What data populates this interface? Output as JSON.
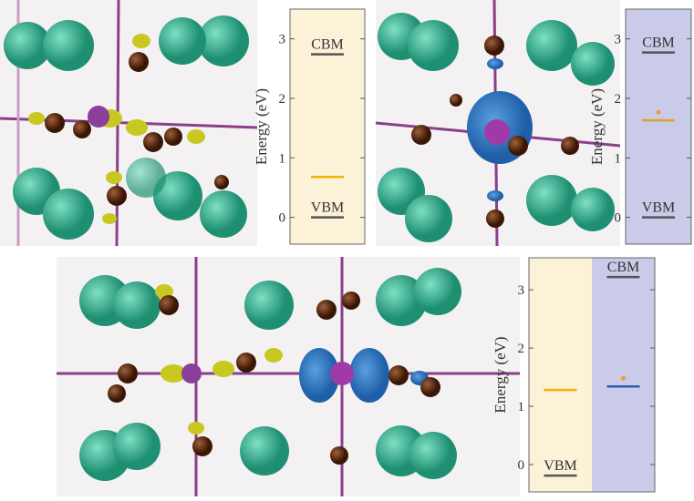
{
  "chart_data": [
    {
      "type": "level",
      "ylabel": "Energy (eV)",
      "ylim": [
        -0.45,
        3.5
      ],
      "yticks": [
        0,
        1,
        2,
        3
      ],
      "columns": [
        {
          "background": "#fbf2d8",
          "levels": [
            {
              "label": "CBM",
              "value": 2.74,
              "color": "#555555"
            },
            {
              "label": "VBM",
              "value": 0,
              "color": "#555555"
            },
            {
              "value": 0.68,
              "color": "#f2b400"
            }
          ]
        }
      ]
    },
    {
      "type": "level",
      "ylabel": "Energy (eV)",
      "ylim": [
        -0.45,
        3.5
      ],
      "yticks": [
        0,
        1,
        2,
        3
      ],
      "columns": [
        {
          "background": "#c9cbe8",
          "levels": [
            {
              "label": "CBM",
              "value": 2.77,
              "color": "#555555"
            },
            {
              "label": "VBM",
              "value": 0,
              "color": "#555555"
            },
            {
              "value": 1.63,
              "color": "#e0a030"
            }
          ]
        }
      ]
    },
    {
      "type": "level",
      "ylabel": "Energy (eV)",
      "ylim": [
        -0.47,
        3.55
      ],
      "yticks": [
        0,
        1,
        2,
        3
      ],
      "columns": [
        {
          "background": "#fbf2d8",
          "levels": [
            {
              "label": "VBM",
              "value": -0.19,
              "color": "#555555"
            },
            {
              "value": 1.28,
              "color": "#f2b400"
            }
          ]
        },
        {
          "background": "#c9cbe8",
          "levels": [
            {
              "label": "CBM",
              "value": 3.22,
              "color": "#555555"
            },
            {
              "value": 1.34,
              "color": "#2a5fb0"
            }
          ]
        }
      ]
    }
  ]
}
